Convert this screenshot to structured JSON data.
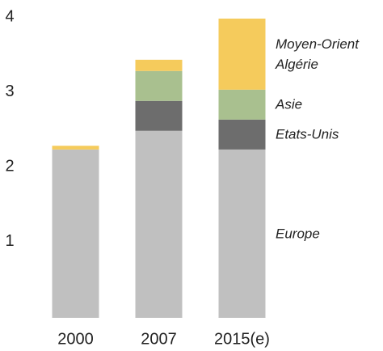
{
  "chart_data": {
    "type": "stacked_bar",
    "categories": [
      "2000",
      "2007",
      "2015(e)"
    ],
    "series": [
      {
        "name": "Europe",
        "color": "#c0c0c0",
        "values": [
          2.25,
          2.5,
          2.25
        ]
      },
      {
        "name": "Etats-Unis",
        "color": "#6d6d6d",
        "values": [
          0,
          0.4,
          0.4
        ]
      },
      {
        "name": "Asie",
        "color": "#a9c08f",
        "values": [
          0,
          0.4,
          0.4
        ]
      },
      {
        "name": "Moyen-Orient Algérie",
        "color": "#f5cb5c",
        "values": [
          0.05,
          0.15,
          0.95
        ]
      }
    ],
    "ylim": [
      0,
      4
    ],
    "yticks": [
      1,
      2,
      3,
      4
    ],
    "grid": false
  }
}
